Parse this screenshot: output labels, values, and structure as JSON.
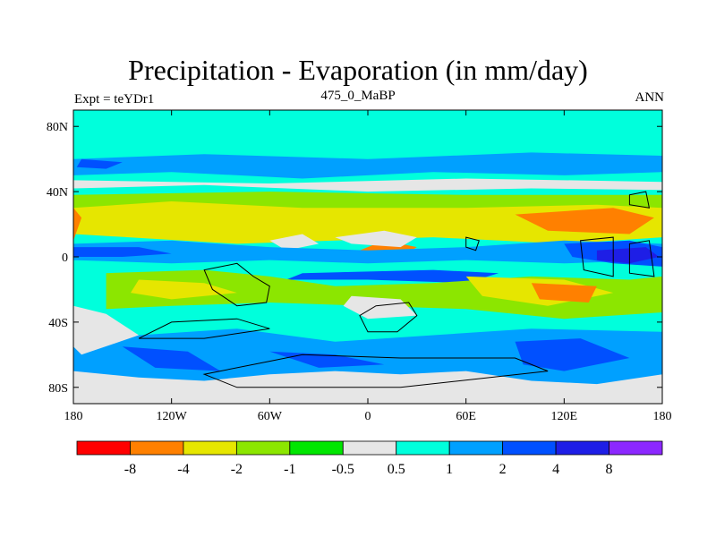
{
  "chart_data": {
    "type": "heatmap",
    "title": "Precipitation - Evaporation (in mm/day)",
    "left_string": "Expt = teYDr1",
    "center_string": "475_0_MaBP",
    "right_string": "ANN",
    "xlim": [
      -180,
      180
    ],
    "ylim": [
      -90,
      90
    ],
    "x_ticks": [
      {
        "value": -180,
        "label": "180"
      },
      {
        "value": -120,
        "label": "120W"
      },
      {
        "value": -60,
        "label": "60W"
      },
      {
        "value": 0,
        "label": "0"
      },
      {
        "value": 60,
        "label": "60E"
      },
      {
        "value": 120,
        "label": "120E"
      },
      {
        "value": 180,
        "label": "180"
      }
    ],
    "y_ticks": [
      {
        "value": 80,
        "label": "80N"
      },
      {
        "value": 40,
        "label": "40N"
      },
      {
        "value": 0,
        "label": "0"
      },
      {
        "value": -40,
        "label": "40S"
      },
      {
        "value": -80,
        "label": "80S"
      }
    ],
    "colorbar": {
      "colors": [
        "#ff0000",
        "#ff8000",
        "#e6e600",
        "#8ce600",
        "#00e600",
        "#e6e6e6",
        "#00ffdc",
        "#00a0ff",
        "#0050ff",
        "#1e1ee6",
        "#8c28ff"
      ],
      "labels": [
        "-8",
        "-4",
        "-2",
        "-1",
        "-0.5",
        "0.5",
        "1",
        "2",
        "4",
        "8"
      ]
    },
    "zonal_bands": [
      {
        "lat_range": [
          70,
          90
        ],
        "level": "0.5 to 1"
      },
      {
        "lat_range": [
          45,
          65
        ],
        "level": "1 to 2"
      },
      {
        "lat_range": [
          20,
          40
        ],
        "level": "-1 to -4"
      },
      {
        "lat_range": [
          0,
          10
        ],
        "level": "2 to 8"
      },
      {
        "lat_range": [
          -30,
          -10
        ],
        "level": "-1 to -4"
      },
      {
        "lat_range": [
          -70,
          -45
        ],
        "level": "1 to 4"
      },
      {
        "lat_range": [
          -90,
          -75
        ],
        "level": "-0.5 to 0.5"
      }
    ]
  }
}
